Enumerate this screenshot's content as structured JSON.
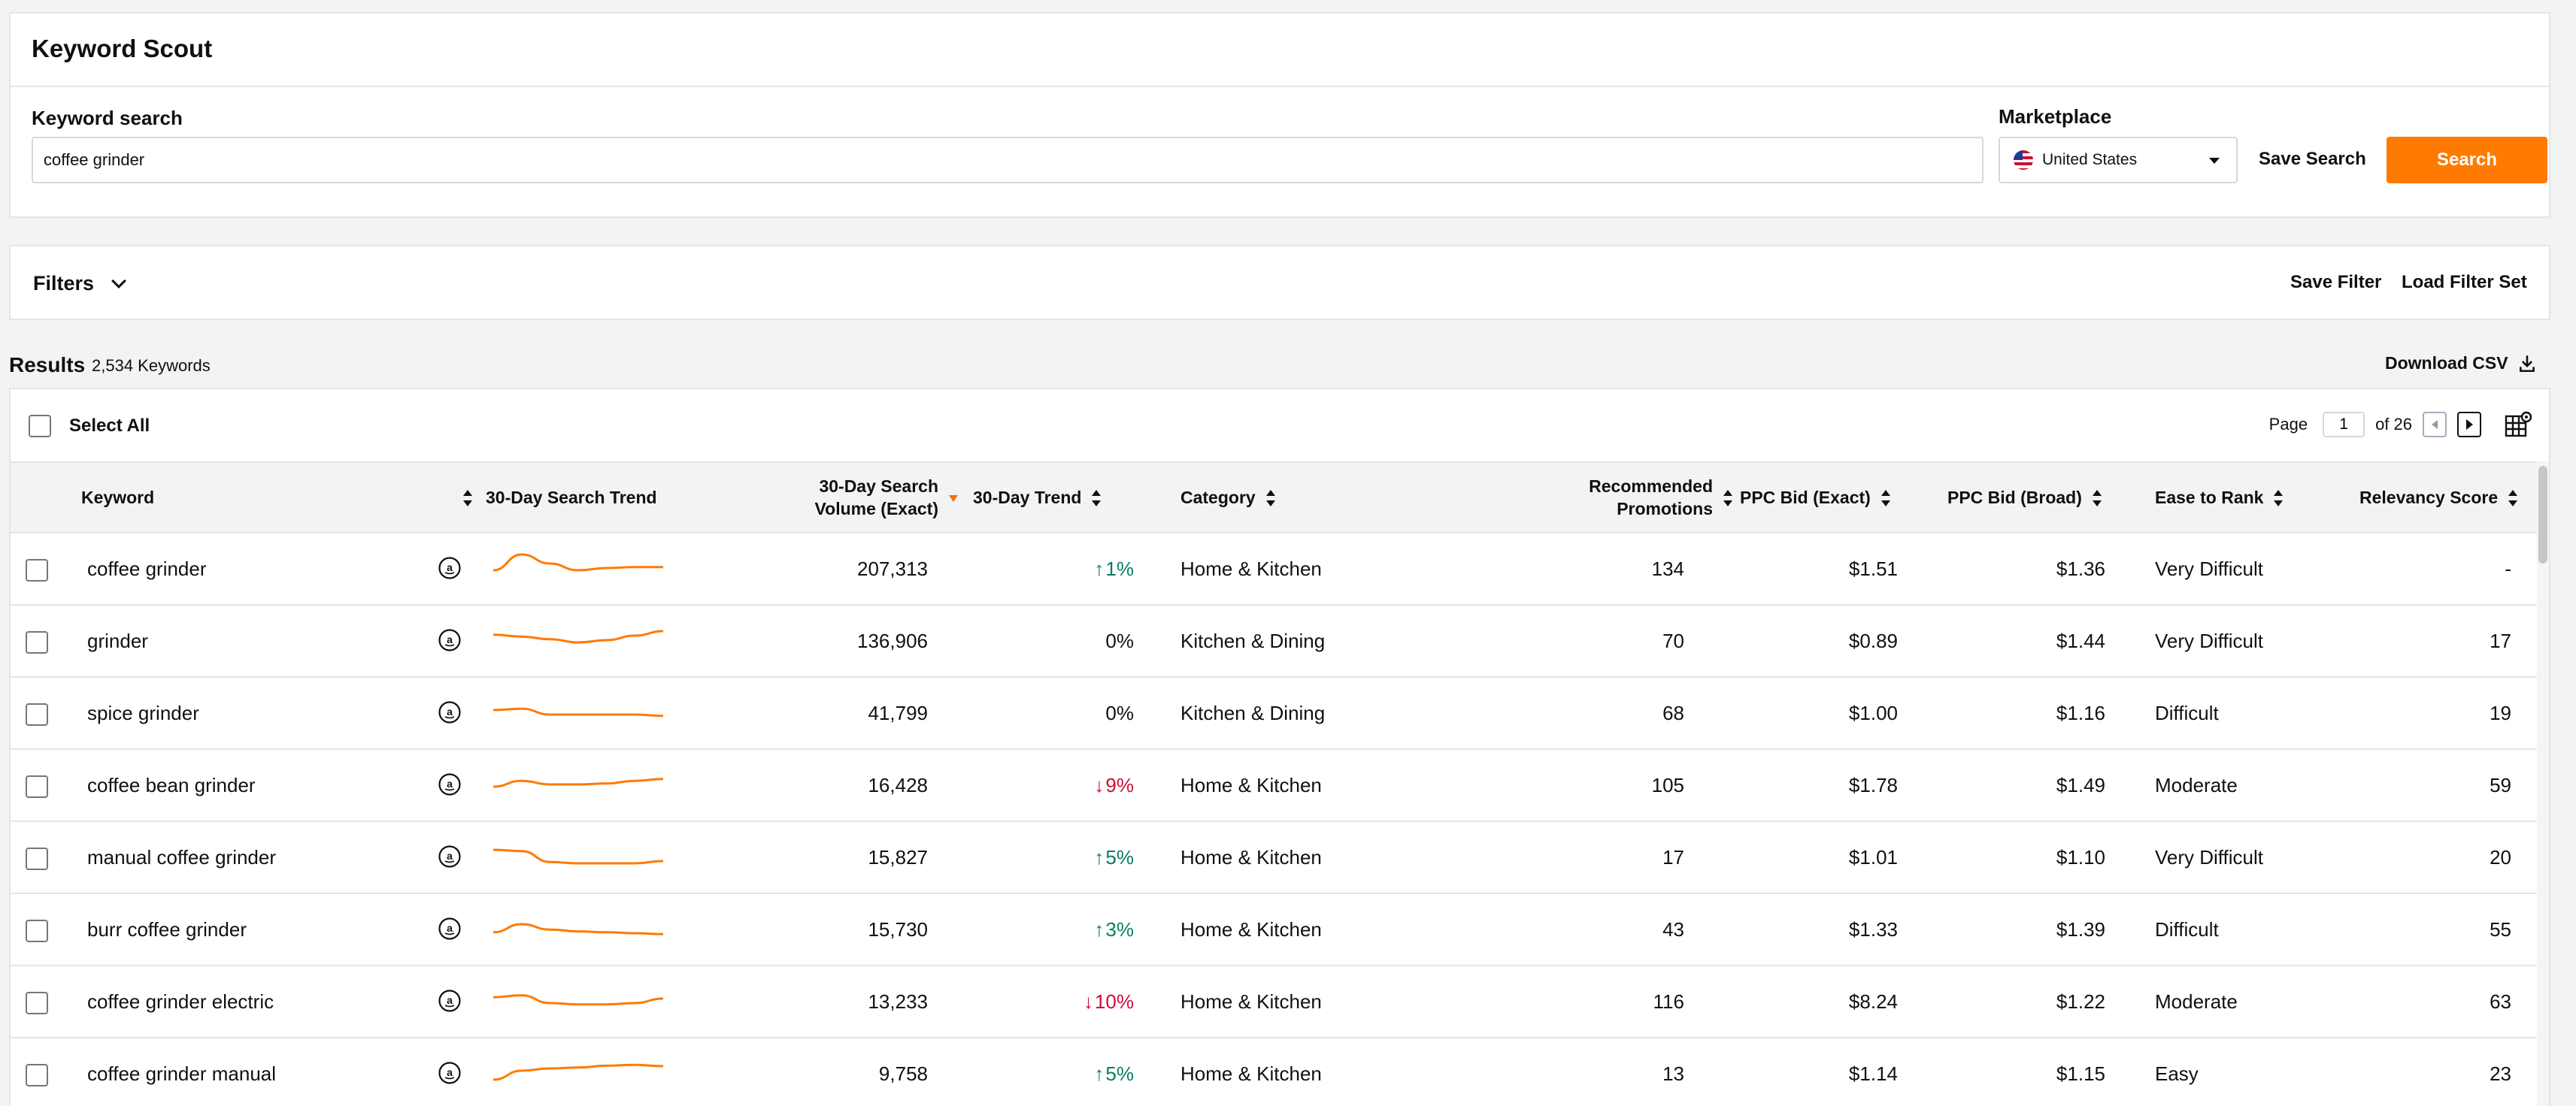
{
  "app": {
    "title": "Keyword Scout"
  },
  "search": {
    "label": "Keyword search",
    "value": "coffee grinder",
    "marketplace_label": "Marketplace",
    "marketplace_value": "United States",
    "save_search": "Save Search",
    "search_button": "Search"
  },
  "filters": {
    "label": "Filters",
    "save_filter": "Save Filter",
    "load_filter_set": "Load Filter Set"
  },
  "results": {
    "title": "Results",
    "count": "2,534 Keywords",
    "download": "Download CSV",
    "select_all": "Select All"
  },
  "pager": {
    "label": "Page",
    "current": "1",
    "of": "of 26"
  },
  "columns": {
    "keyword": "Keyword",
    "trend_chart": "30-Day Search Trend",
    "volume": "30-Day Search Volume (Exact)",
    "trend": "30-Day Trend",
    "category": "Category",
    "promotions": "Recommended Promotions",
    "ppc_exact": "PPC Bid (Exact)",
    "ppc_broad": "PPC Bid (Broad)",
    "ease": "Ease to Rank",
    "relevancy": "Relevancy Score"
  },
  "colors": {
    "accent": "#ff7a00",
    "up": "#067d62",
    "down": "#cc0c39"
  },
  "rows": [
    {
      "keyword": "coffee grinder",
      "volume": "207,313",
      "trend": "1%",
      "trend_dir": "up",
      "category": "Home & Kitchen",
      "promotions": "134",
      "ppc_exact": "$1.51",
      "ppc_broad": "$1.36",
      "ease": "Very Difficult",
      "relevancy": "-",
      "spark": [
        0.45,
        0.8,
        0.6,
        0.45,
        0.5,
        0.52,
        0.52
      ]
    },
    {
      "keyword": "grinder",
      "volume": "136,906",
      "trend": "0%",
      "trend_dir": "flat",
      "category": "Kitchen & Dining",
      "promotions": "70",
      "ppc_exact": "$0.89",
      "ppc_broad": "$1.44",
      "ease": "Very Difficult",
      "relevancy": "17",
      "spark": [
        0.62,
        0.58,
        0.52,
        0.45,
        0.5,
        0.6,
        0.7
      ]
    },
    {
      "keyword": "spice grinder",
      "volume": "41,799",
      "trend": "0%",
      "trend_dir": "flat",
      "category": "Kitchen & Dining",
      "promotions": "68",
      "ppc_exact": "$1.00",
      "ppc_broad": "$1.16",
      "ease": "Difficult",
      "relevancy": "19",
      "spark": [
        0.55,
        0.58,
        0.45,
        0.45,
        0.45,
        0.45,
        0.42
      ]
    },
    {
      "keyword": "coffee bean grinder",
      "volume": "16,428",
      "trend": "9%",
      "trend_dir": "down",
      "category": "Home & Kitchen",
      "promotions": "105",
      "ppc_exact": "$1.78",
      "ppc_broad": "$1.49",
      "ease": "Moderate",
      "relevancy": "59",
      "spark": [
        0.45,
        0.58,
        0.5,
        0.5,
        0.52,
        0.58,
        0.62
      ]
    },
    {
      "keyword": "manual coffee grinder",
      "volume": "15,827",
      "trend": "5%",
      "trend_dir": "up",
      "category": "Home & Kitchen",
      "promotions": "17",
      "ppc_exact": "$1.01",
      "ppc_broad": "$1.10",
      "ease": "Very Difficult",
      "relevancy": "20",
      "spark": [
        0.65,
        0.62,
        0.38,
        0.35,
        0.35,
        0.35,
        0.4
      ]
    },
    {
      "keyword": "burr coffee grinder",
      "volume": "15,730",
      "trend": "3%",
      "trend_dir": "up",
      "category": "Home & Kitchen",
      "promotions": "43",
      "ppc_exact": "$1.33",
      "ppc_broad": "$1.39",
      "ease": "Difficult",
      "relevancy": "55",
      "spark": [
        0.42,
        0.6,
        0.48,
        0.44,
        0.42,
        0.4,
        0.38
      ]
    },
    {
      "keyword": "coffee grinder electric",
      "volume": "13,233",
      "trend": "10%",
      "trend_dir": "down",
      "category": "Home & Kitchen",
      "promotions": "116",
      "ppc_exact": "$8.24",
      "ppc_broad": "$1.22",
      "ease": "Moderate",
      "relevancy": "63",
      "spark": [
        0.58,
        0.62,
        0.45,
        0.42,
        0.42,
        0.45,
        0.55
      ]
    },
    {
      "keyword": "coffee grinder manual",
      "volume": "9,758",
      "trend": "5%",
      "trend_dir": "up",
      "category": "Home & Kitchen",
      "promotions": "13",
      "ppc_exact": "$1.14",
      "ppc_broad": "$1.15",
      "ease": "Easy",
      "relevancy": "23",
      "spark": [
        0.35,
        0.55,
        0.6,
        0.62,
        0.66,
        0.68,
        0.65
      ]
    }
  ]
}
